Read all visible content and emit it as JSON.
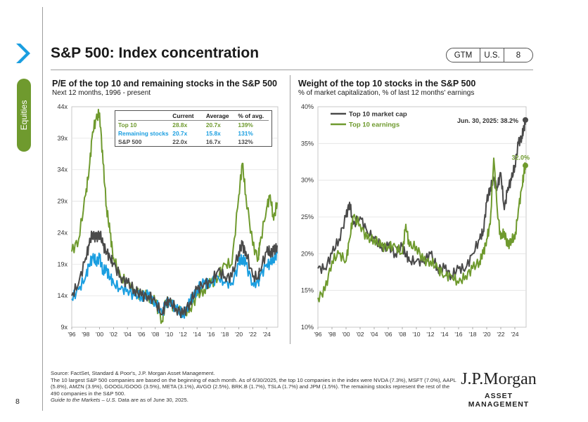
{
  "page": {
    "title": "S&P 500: Index concentration",
    "section": "Equities",
    "page_number": "8",
    "pill": [
      "GTM",
      "U.S.",
      "8"
    ]
  },
  "left_chart": {
    "title": "P/E of the top 10 and remaining stocks in the S&P 500",
    "subtitle": "Next 12 months, 1996 - present",
    "table": {
      "headers": [
        "",
        "Current",
        "Average",
        "% of avg."
      ],
      "rows": [
        {
          "label": "Top 10",
          "values": [
            "28.8x",
            "20.7x",
            "139%"
          ],
          "color": "#6f9a2e"
        },
        {
          "label": "Remaining stocks",
          "values": [
            "20.7x",
            "15.8x",
            "131%"
          ],
          "color": "#1a9ee0"
        },
        {
          "label": "S&P 500",
          "values": [
            "22.0x",
            "16.7x",
            "132%"
          ],
          "color": "#4a4a4a"
        }
      ]
    }
  },
  "right_chart": {
    "title": "Weight of the top 10 stocks in the S&P 500",
    "subtitle": "% of market capitalization, % of last 12 months' earnings",
    "end_label_cap": "Jun. 30, 2025: 38.2%",
    "end_label_earn": "32.0%"
  },
  "chart_data": [
    {
      "type": "line",
      "title": "P/E of the top 10 and remaining stocks in the S&P 500",
      "subtitle": "Next 12 months, 1996 - present",
      "x_ticks": [
        "'96",
        "'98",
        "'00",
        "'02",
        "'04",
        "'06",
        "'08",
        "'10",
        "'12",
        "'14",
        "'16",
        "'18",
        "'20",
        "'22",
        "'24"
      ],
      "y_ticks": [
        "9x",
        "14x",
        "19x",
        "24x",
        "29x",
        "34x",
        "39x",
        "44x"
      ],
      "xlim": [
        1996,
        2025.6
      ],
      "ylim": [
        9,
        44
      ],
      "x": [
        1996,
        1997,
        1998,
        1998.5,
        1999,
        1999.5,
        2000,
        2000.5,
        2001,
        2001.5,
        2002,
        2003,
        2004,
        2005,
        2006,
        2007,
        2008,
        2009,
        2009.5,
        2010,
        2011,
        2012,
        2013,
        2014,
        2015,
        2016,
        2017,
        2018,
        2019,
        2020,
        2020.5,
        2021,
        2022,
        2022.8,
        2023,
        2024,
        2024.5,
        2025,
        2025.5
      ],
      "series": [
        {
          "name": "Top 10",
          "color": "#6f9a2e",
          "values": [
            21,
            23,
            30,
            34,
            40,
            42,
            43,
            35,
            28,
            24,
            20,
            17,
            16,
            15,
            14,
            14,
            13,
            10,
            13,
            13,
            12,
            11,
            12,
            14,
            15,
            16,
            17,
            19,
            19,
            30,
            35,
            30,
            22,
            20,
            22,
            28,
            30,
            26,
            28.8
          ]
        },
        {
          "name": "Remaining stocks",
          "color": "#1a9ee0",
          "values": [
            13.5,
            15,
            17,
            19,
            20,
            19.5,
            20,
            18,
            18,
            17,
            16,
            15,
            15,
            14,
            14,
            14,
            13,
            11,
            13,
            13,
            12,
            11,
            13,
            15,
            16,
            16,
            17,
            16,
            16,
            19,
            20,
            19,
            16,
            16,
            17,
            19,
            19,
            20,
            20.7
          ]
        },
        {
          "name": "S&P 500",
          "color": "#4a4a4a",
          "values": [
            14,
            16,
            20,
            22,
            24,
            23,
            24,
            22,
            21,
            20,
            19,
            17,
            16,
            15,
            14,
            14,
            13,
            11,
            13,
            13,
            12,
            11,
            13,
            15,
            16,
            16,
            18,
            17,
            17,
            21,
            22,
            21,
            17,
            17,
            18,
            21,
            21,
            21,
            22
          ]
        }
      ]
    },
    {
      "type": "line",
      "title": "Weight of the top 10 stocks in the S&P 500",
      "subtitle": "% of market capitalization, % of last 12 months' earnings",
      "x_ticks": [
        "'96",
        "'98",
        "'00",
        "'02",
        "'04",
        "'06",
        "'08",
        "'10",
        "'12",
        "'14",
        "'16",
        "'18",
        "'20",
        "'22",
        "'24"
      ],
      "y_ticks": [
        "10%",
        "15%",
        "20%",
        "25%",
        "30%",
        "35%",
        "40%"
      ],
      "xlim": [
        1996,
        2025.6
      ],
      "ylim": [
        10,
        40
      ],
      "x": [
        1996,
        1997,
        1998,
        1999,
        2000,
        2000.5,
        2001,
        2002,
        2003,
        2004,
        2005,
        2006,
        2007,
        2008,
        2008.5,
        2009,
        2010,
        2011,
        2012,
        2013,
        2014,
        2015,
        2016,
        2017,
        2018,
        2019,
        2019.5,
        2020,
        2020.5,
        2021,
        2021.5,
        2022,
        2022.5,
        2023,
        2023.5,
        2024,
        2024.5,
        2025,
        2025.3,
        2025.5
      ],
      "series": [
        {
          "name": "Top 10 market cap",
          "color": "#4a4a4a",
          "values": [
            18,
            18,
            20,
            22,
            25,
            27,
            24,
            25,
            23,
            22,
            21,
            21,
            20,
            21,
            20,
            19,
            19,
            19,
            20,
            18,
            18,
            17,
            18,
            18,
            20,
            22,
            23,
            27,
            29,
            30,
            29,
            31,
            26,
            29,
            30,
            32,
            35,
            36,
            37,
            38.2
          ]
        },
        {
          "name": "Top 10 earnings",
          "color": "#6f9a2e",
          "values": [
            14,
            15,
            19,
            20,
            19,
            22,
            25,
            24,
            22,
            22,
            21,
            21,
            21,
            20,
            24,
            21,
            21,
            19,
            19,
            18,
            17,
            17,
            16,
            17,
            18,
            19,
            20,
            22,
            24,
            33,
            26,
            22,
            23,
            21,
            22,
            22,
            26,
            29,
            31,
            32.0
          ]
        }
      ]
    }
  ]
}
